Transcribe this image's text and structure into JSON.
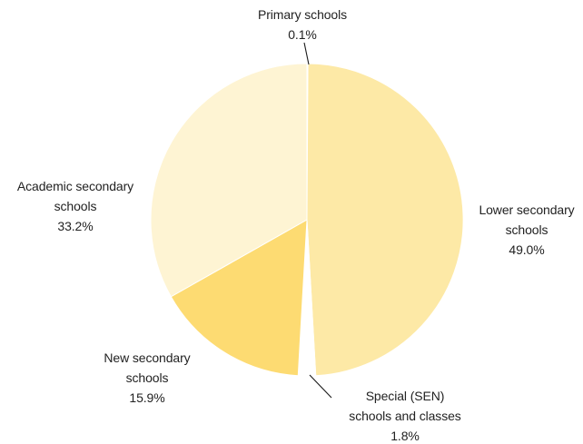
{
  "chart_data": {
    "type": "pie",
    "title": "",
    "slices": [
      {
        "label_lines": [
          "Primary schools",
          "0.1%"
        ],
        "category": "Primary schools",
        "value": 0.1,
        "value_label": "0.1%",
        "color": "#fde9a6"
      },
      {
        "label_lines": [
          "Lower secondary",
          "schools",
          "49.0%"
        ],
        "category": "Lower secondary schools",
        "value": 49.0,
        "value_label": "49.0%",
        "color": "#fde9a6"
      },
      {
        "label_lines": [
          "Special (SEN)",
          "schools and classes",
          "1.8%"
        ],
        "category": "Special (SEN) schools and classes",
        "value": 1.8,
        "value_label": "1.8%",
        "color": "#ffffff"
      },
      {
        "label_lines": [
          "New secondary",
          "schools",
          "15.9%"
        ],
        "category": "New secondary schools",
        "value": 15.9,
        "value_label": "15.9%",
        "color": "#fddb72"
      },
      {
        "label_lines": [
          "Academic secondary",
          "schools",
          "33.2%"
        ],
        "category": "Academic secondary schools",
        "value": 33.2,
        "value_label": "33.2%",
        "color": "#fef4d3"
      }
    ]
  }
}
